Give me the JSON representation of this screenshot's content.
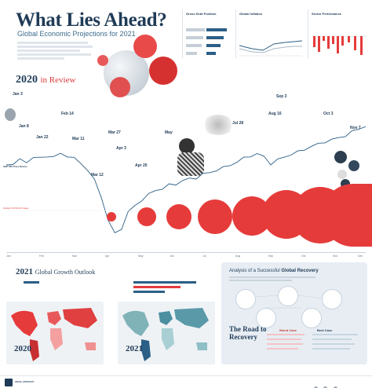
{
  "header": {
    "title": "What Lies Ahead?",
    "subtitle": "Global Economic Projections for 2021"
  },
  "panels": [
    {
      "title": "Gross Debt Position"
    },
    {
      "title": "Global Inflation"
    },
    {
      "title": "Sector Performance"
    }
  ],
  "review": {
    "year": "2020",
    "label": "in Review"
  },
  "events": [
    {
      "date": "Jan 3"
    },
    {
      "date": "Jan 8"
    },
    {
      "date": "Jan 22"
    },
    {
      "date": "Feb 14"
    },
    {
      "date": "Mar 11"
    },
    {
      "date": "Mar 12"
    },
    {
      "date": "Mar 27"
    },
    {
      "date": "Apr 3"
    },
    {
      "date": "Apr 20"
    },
    {
      "date": "May"
    },
    {
      "date": "Jul 28"
    },
    {
      "date": "Aug 16"
    },
    {
      "date": "Sep 3"
    },
    {
      "date": "Oct 3"
    },
    {
      "date": "Nov 7"
    }
  ],
  "sp_label": "S&P 500 Price Return",
  "covid_label": "Global COVID-19 Cases",
  "months": [
    "Jan",
    "Feb",
    "Mar",
    "Apr",
    "May",
    "Jun",
    "Jul",
    "Aug",
    "Sep",
    "Oct",
    "Nov",
    "Dec"
  ],
  "growth": {
    "year": "2021",
    "label": "Global Growth Outlook"
  },
  "maps": [
    {
      "year": "2020"
    },
    {
      "year": "2021"
    }
  ],
  "recovery": {
    "title_a": "Analysis of a Successful ",
    "title_b": "Global Recovery",
    "road_a": "The Road to",
    "road_b": "Recovery",
    "worst": "Worst Case",
    "best": "Best Case"
  },
  "footer": {
    "brand": "VISUAL CAPITALIST"
  },
  "colors": {
    "navy": "#1f3b57",
    "red": "#e63b3b",
    "line": "#2c5f86"
  }
}
